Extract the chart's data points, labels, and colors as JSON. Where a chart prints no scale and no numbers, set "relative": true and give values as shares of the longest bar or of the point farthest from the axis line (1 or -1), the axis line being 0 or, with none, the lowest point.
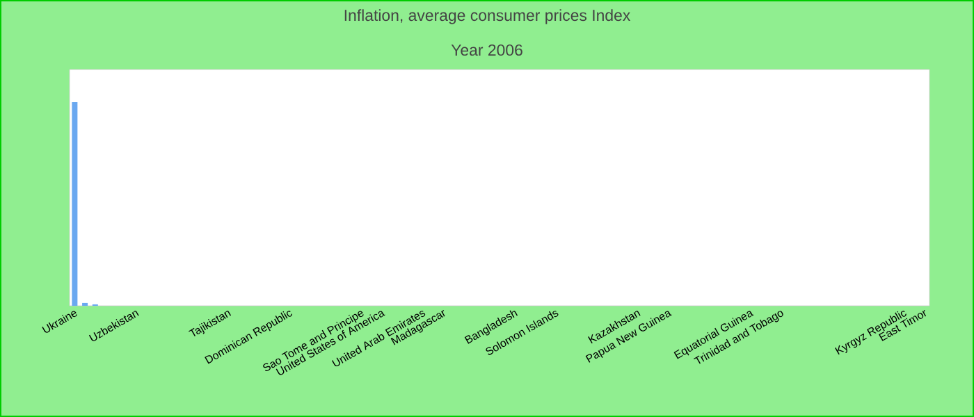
{
  "chart_data": {
    "type": "bar",
    "title": "Inflation, average consumer prices  Index",
    "subtitle": "Year 2006",
    "relative": true,
    "color": "#6aa8f0",
    "categories": [
      "Ukraine",
      null,
      null,
      null,
      null,
      null,
      "Uzbekistan",
      null,
      null,
      null,
      null,
      null,
      null,
      null,
      null,
      "Tajikistan",
      null,
      null,
      null,
      null,
      null,
      "Dominican Republic",
      null,
      null,
      null,
      null,
      null,
      null,
      "Sao Tome and Principe",
      null,
      "United States of America",
      null,
      null,
      null,
      "United Arab Emirates",
      null,
      "Madagascar",
      null,
      null,
      null,
      null,
      null,
      null,
      "Bangladesh",
      null,
      null,
      null,
      "Solomon Islands",
      null,
      null,
      null,
      null,
      null,
      null,
      null,
      "Kazakhstan",
      null,
      null,
      "Papua New Guinea",
      null,
      null,
      null,
      null,
      null,
      null,
      null,
      "Equatorial Guinea",
      null,
      null,
      "Trinidad and Tobago",
      null,
      null,
      null,
      null,
      null,
      null,
      null,
      null,
      null,
      null,
      null,
      "Kyrgyz Republic",
      null,
      "East Timor"
    ],
    "values": [
      1,
      0.014,
      0.007,
      0,
      0,
      0,
      0,
      0,
      0,
      0,
      0,
      0,
      0,
      0,
      0,
      0,
      0,
      0,
      0,
      0,
      0,
      0,
      0,
      0,
      0,
      0,
      0,
      0,
      0,
      0,
      0,
      0,
      0,
      0,
      0,
      0,
      0,
      0,
      0,
      0,
      0,
      0,
      0,
      0,
      0,
      0,
      0,
      0,
      0,
      0,
      0,
      0,
      0,
      0,
      0,
      0,
      0,
      0,
      0,
      0,
      0,
      0,
      0,
      0,
      0,
      0,
      0,
      0,
      0,
      0,
      0,
      0,
      0,
      0,
      0,
      0,
      0,
      0,
      0,
      0,
      0,
      0,
      0,
      0
    ]
  }
}
